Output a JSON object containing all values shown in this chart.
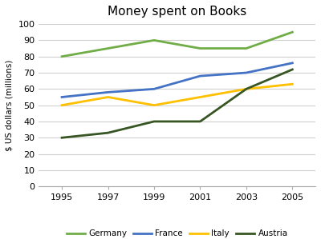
{
  "title": "Money spent on Books",
  "ylabel": "$ US dollars (millions)",
  "years": [
    1995,
    1997,
    1999,
    2001,
    2003,
    2005
  ],
  "series": {
    "Germany": {
      "values": [
        80,
        85,
        90,
        85,
        85,
        95
      ],
      "color": "#70ad47",
      "linewidth": 2.0
    },
    "France": {
      "values": [
        55,
        58,
        60,
        68,
        70,
        76
      ],
      "color": "#4472c4",
      "linewidth": 2.0
    },
    "Italy": {
      "values": [
        50,
        55,
        50,
        55,
        60,
        63
      ],
      "color": "#ffc000",
      "linewidth": 2.0
    },
    "Austria": {
      "values": [
        30,
        33,
        40,
        40,
        60,
        72
      ],
      "color": "#375623",
      "linewidth": 2.0
    }
  },
  "ylim": [
    0,
    100
  ],
  "yticks": [
    0,
    10,
    20,
    30,
    40,
    50,
    60,
    70,
    80,
    90,
    100
  ],
  "xticks": [
    1995,
    1997,
    1999,
    2001,
    2003,
    2005
  ],
  "legend_order": [
    "Germany",
    "France",
    "Italy",
    "Austria"
  ],
  "background_color": "#ffffff",
  "grid_color": "#d0d0d0"
}
